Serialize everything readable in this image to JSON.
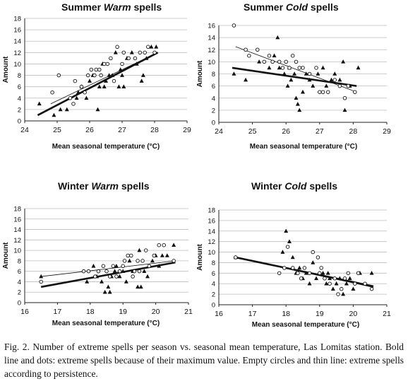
{
  "chart_data": [
    {
      "type": "scatter",
      "title_pre": "Summer ",
      "title_em": "Warm",
      "title_post": " spells",
      "xlabel": "Mean seasonal temperature (°C)",
      "ylabel": "Amount",
      "xlim": [
        24,
        29
      ],
      "xticks": [
        24,
        25,
        26,
        27,
        28,
        29
      ],
      "ylim": [
        0,
        18
      ],
      "yticks": [
        0,
        2,
        4,
        6,
        8,
        10,
        12,
        14,
        16,
        18
      ],
      "grid": true,
      "series": [
        {
          "marker": "triangle-filled",
          "points": [
            [
              24.45,
              3
            ],
            [
              24.9,
              1
            ],
            [
              25.1,
              2
            ],
            [
              25.3,
              2
            ],
            [
              25.6,
              4
            ],
            [
              25.65,
              5
            ],
            [
              25.75,
              6
            ],
            [
              25.9,
              4
            ],
            [
              26.0,
              7
            ],
            [
              26.1,
              8
            ],
            [
              26.25,
              2
            ],
            [
              26.3,
              6
            ],
            [
              26.45,
              6
            ],
            [
              26.5,
              7
            ],
            [
              26.6,
              8
            ],
            [
              26.7,
              8
            ],
            [
              26.8,
              12
            ],
            [
              26.9,
              6
            ],
            [
              26.95,
              9
            ],
            [
              27.05,
              6
            ],
            [
              27.15,
              11
            ],
            [
              27.3,
              12
            ],
            [
              27.45,
              10
            ],
            [
              27.6,
              7
            ],
            [
              27.65,
              8
            ],
            [
              27.75,
              11
            ],
            [
              27.9,
              13
            ],
            [
              28.05,
              13
            ],
            [
              26.4,
              10
            ],
            [
              27.0,
              8
            ]
          ],
          "fit": [
            [
              24.4,
              1
            ],
            [
              28.1,
              12
            ]
          ]
        },
        {
          "marker": "circle-open",
          "points": [
            [
              24.85,
              5
            ],
            [
              25.05,
              8
            ],
            [
              25.4,
              4
            ],
            [
              25.55,
              7
            ],
            [
              25.75,
              6
            ],
            [
              25.85,
              5
            ],
            [
              25.95,
              8
            ],
            [
              26.05,
              9
            ],
            [
              26.15,
              8
            ],
            [
              26.2,
              9
            ],
            [
              26.3,
              9
            ],
            [
              26.35,
              8
            ],
            [
              26.45,
              10
            ],
            [
              26.55,
              10
            ],
            [
              26.65,
              11
            ],
            [
              26.75,
              7
            ],
            [
              26.85,
              13
            ],
            [
              27.0,
              10
            ],
            [
              27.05,
              12
            ],
            [
              27.2,
              11
            ],
            [
              27.4,
              11
            ],
            [
              27.55,
              12
            ],
            [
              27.7,
              12
            ],
            [
              27.8,
              13
            ],
            [
              28.0,
              12
            ],
            [
              25.5,
              3
            ]
          ],
          "fit": [
            [
              24.8,
              3
            ],
            [
              28.1,
              12
            ]
          ]
        }
      ]
    },
    {
      "type": "scatter",
      "title_pre": "Summer ",
      "title_em": "Cold",
      "title_post": " spells",
      "xlabel": "Mean seasonal temperature (°C)",
      "ylabel": "Amount",
      "xlim": [
        24,
        29
      ],
      "xticks": [
        24,
        25,
        26,
        27,
        28,
        29
      ],
      "ylim": [
        0,
        16
      ],
      "yticks": [
        0,
        2,
        4,
        6,
        8,
        10,
        12,
        14,
        16
      ],
      "grid": true,
      "series": [
        {
          "marker": "triangle-filled",
          "points": [
            [
              24.45,
              8
            ],
            [
              24.8,
              7
            ],
            [
              25.2,
              10
            ],
            [
              25.5,
              9
            ],
            [
              25.65,
              11
            ],
            [
              25.75,
              14
            ],
            [
              25.8,
              9
            ],
            [
              25.95,
              8
            ],
            [
              26.05,
              6
            ],
            [
              26.15,
              7
            ],
            [
              26.25,
              8
            ],
            [
              26.3,
              4
            ],
            [
              26.35,
              3
            ],
            [
              26.4,
              2
            ],
            [
              26.5,
              5
            ],
            [
              26.6,
              8
            ],
            [
              26.7,
              7
            ],
            [
              26.8,
              6
            ],
            [
              26.95,
              8
            ],
            [
              27.1,
              9
            ],
            [
              27.2,
              6
            ],
            [
              27.35,
              7
            ],
            [
              27.45,
              8
            ],
            [
              27.6,
              7
            ],
            [
              27.7,
              10
            ],
            [
              27.75,
              2
            ],
            [
              27.9,
              6
            ],
            [
              28.15,
              9
            ],
            [
              26.1,
              9
            ]
          ],
          "fit": [
            [
              24.4,
              9
            ],
            [
              28.1,
              6
            ]
          ]
        },
        {
          "marker": "circle-open",
          "points": [
            [
              24.45,
              16
            ],
            [
              24.8,
              12
            ],
            [
              24.9,
              11
            ],
            [
              25.15,
              12
            ],
            [
              25.35,
              10
            ],
            [
              25.5,
              11
            ],
            [
              25.6,
              10
            ],
            [
              25.8,
              10
            ],
            [
              25.9,
              9
            ],
            [
              26.0,
              10
            ],
            [
              26.1,
              9
            ],
            [
              26.2,
              11
            ],
            [
              26.3,
              10
            ],
            [
              26.4,
              9
            ],
            [
              26.5,
              9
            ],
            [
              26.7,
              8
            ],
            [
              26.9,
              9
            ],
            [
              27.0,
              5
            ],
            [
              27.1,
              5
            ],
            [
              27.25,
              5
            ],
            [
              27.45,
              7
            ],
            [
              27.6,
              6
            ],
            [
              27.75,
              4
            ],
            [
              27.85,
              6
            ],
            [
              28.05,
              5
            ]
          ],
          "fit": [
            [
              24.5,
              12.5
            ],
            [
              28.1,
              5
            ]
          ]
        }
      ]
    },
    {
      "type": "scatter",
      "title_pre": "Winter ",
      "title_em": "Warm",
      "title_post": " spells",
      "xlabel": "Mean seasonal temperature (°C)",
      "ylabel": "Amount",
      "xlim": [
        16,
        21
      ],
      "xticks": [
        16,
        17,
        18,
        19,
        20,
        21
      ],
      "ylim": [
        0,
        18
      ],
      "yticks": [
        0,
        2,
        4,
        6,
        8,
        10,
        12,
        14,
        16,
        18
      ],
      "grid": true,
      "series": [
        {
          "marker": "triangle-filled",
          "points": [
            [
              16.5,
              5
            ],
            [
              17.9,
              4
            ],
            [
              18.1,
              7
            ],
            [
              18.2,
              5
            ],
            [
              18.35,
              4
            ],
            [
              18.45,
              2
            ],
            [
              18.55,
              3
            ],
            [
              18.6,
              2
            ],
            [
              18.65,
              5
            ],
            [
              18.8,
              7
            ],
            [
              18.9,
              5
            ],
            [
              19.0,
              6
            ],
            [
              19.1,
              4
            ],
            [
              19.2,
              8
            ],
            [
              19.3,
              6
            ],
            [
              19.45,
              3
            ],
            [
              19.5,
              10
            ],
            [
              19.55,
              3
            ],
            [
              19.65,
              6
            ],
            [
              19.75,
              5
            ],
            [
              19.9,
              8
            ],
            [
              20.0,
              9
            ],
            [
              20.1,
              7
            ],
            [
              20.2,
              9
            ],
            [
              20.35,
              9
            ],
            [
              20.55,
              11
            ],
            [
              18.75,
              6
            ]
          ],
          "fit": [
            [
              16.5,
              3
            ],
            [
              20.6,
              7.7
            ]
          ]
        },
        {
          "marker": "circle-open",
          "points": [
            [
              16.5,
              4
            ],
            [
              17.8,
              6
            ],
            [
              17.95,
              6
            ],
            [
              18.15,
              5
            ],
            [
              18.25,
              6
            ],
            [
              18.4,
              7
            ],
            [
              18.5,
              6
            ],
            [
              18.6,
              5
            ],
            [
              18.7,
              7
            ],
            [
              18.8,
              5
            ],
            [
              18.9,
              6
            ],
            [
              19.0,
              7
            ],
            [
              19.05,
              8
            ],
            [
              19.15,
              9
            ],
            [
              19.25,
              9
            ],
            [
              19.35,
              6
            ],
            [
              19.45,
              8
            ],
            [
              19.5,
              6
            ],
            [
              19.6,
              8
            ],
            [
              19.7,
              10
            ],
            [
              19.8,
              7
            ],
            [
              19.95,
              9
            ],
            [
              20.1,
              11
            ],
            [
              20.25,
              11
            ],
            [
              20.55,
              8
            ],
            [
              19.3,
              5
            ]
          ],
          "fit": [
            [
              16.5,
              5
            ],
            [
              20.6,
              8
            ]
          ]
        }
      ]
    },
    {
      "type": "scatter",
      "title_pre": "Winter ",
      "title_em": "Cold",
      "title_post": " spells",
      "xlabel": "Mean seasonal temperature (°C)",
      "ylabel": "Amount",
      "xlim": [
        16,
        21
      ],
      "xticks": [
        16,
        17,
        18,
        19,
        20,
        21
      ],
      "ylim": [
        0,
        18
      ],
      "yticks": [
        0,
        2,
        4,
        6,
        8,
        10,
        12,
        14,
        16,
        18
      ],
      "grid": true,
      "series": [
        {
          "marker": "triangle-filled",
          "points": [
            [
              16.5,
              9
            ],
            [
              17.9,
              10
            ],
            [
              18.0,
              14
            ],
            [
              18.1,
              12
            ],
            [
              18.2,
              9
            ],
            [
              18.3,
              6
            ],
            [
              18.4,
              7
            ],
            [
              18.5,
              5
            ],
            [
              18.6,
              6
            ],
            [
              18.7,
              4
            ],
            [
              18.8,
              8
            ],
            [
              18.9,
              5
            ],
            [
              19.0,
              6
            ],
            [
              19.1,
              6
            ],
            [
              19.2,
              4
            ],
            [
              19.3,
              5
            ],
            [
              19.4,
              3
            ],
            [
              19.5,
              4
            ],
            [
              19.6,
              5
            ],
            [
              19.7,
              2
            ],
            [
              19.8,
              4
            ],
            [
              19.9,
              5
            ],
            [
              20.0,
              3
            ],
            [
              20.2,
              6
            ],
            [
              20.55,
              6
            ],
            [
              19.25,
              6
            ]
          ],
          "fit": [
            [
              16.5,
              9
            ],
            [
              20.6,
              3.5
            ]
          ]
        },
        {
          "marker": "circle-open",
          "points": [
            [
              16.5,
              9
            ],
            [
              17.8,
              6
            ],
            [
              17.95,
              7
            ],
            [
              18.05,
              11
            ],
            [
              18.2,
              7
            ],
            [
              18.35,
              6
            ],
            [
              18.45,
              5
            ],
            [
              18.55,
              7
            ],
            [
              18.7,
              6
            ],
            [
              18.8,
              10
            ],
            [
              18.95,
              9
            ],
            [
              19.05,
              7
            ],
            [
              19.15,
              5
            ],
            [
              19.3,
              4
            ],
            [
              19.45,
              5
            ],
            [
              19.55,
              2
            ],
            [
              19.65,
              3
            ],
            [
              19.75,
              5
            ],
            [
              19.85,
              6
            ],
            [
              20.05,
              4
            ],
            [
              20.15,
              6
            ],
            [
              20.35,
              4
            ],
            [
              20.55,
              3
            ],
            [
              19.0,
              6
            ]
          ],
          "fit": [
            [
              16.5,
              9
            ],
            [
              20.6,
              3.3
            ]
          ]
        }
      ]
    }
  ],
  "caption": "Fig. 2. Number of extreme spells per season vs. seasonal mean temperature, Las Lomitas station. Bold line and dots: extreme spells because of their maximum value. Empty circles and thin line: extreme  spells according to persistence."
}
